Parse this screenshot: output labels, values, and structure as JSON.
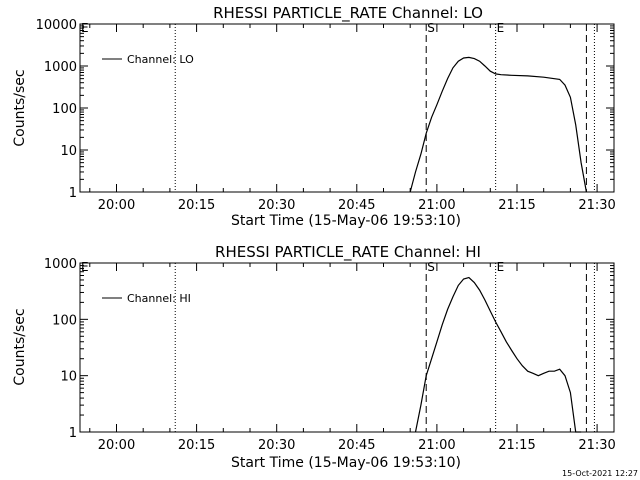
{
  "timestamp": "15-Oct-2021 12:27",
  "chart_data": [
    {
      "type": "line",
      "title": "RHESSI PARTICLE_RATE Channel: LO",
      "xlabel": "Start Time (15-May-06 19:53:10)",
      "ylabel": "Counts/sec",
      "y_scale": "log",
      "ylim": [
        1,
        10000
      ],
      "xlim": [
        "19:53:10",
        "21:33:10"
      ],
      "x_ticks": [
        "20:00",
        "20:15",
        "20:30",
        "20:45",
        "21:00",
        "21:15",
        "21:30"
      ],
      "y_ticks": [
        "1",
        "10",
        "100",
        "1000",
        "10000"
      ],
      "legend": {
        "placement": "top-left",
        "entries": [
          "Channel: LO"
        ]
      },
      "markers": [
        {
          "label": "E",
          "time": "19:53:10",
          "style": "none"
        },
        {
          "label": "",
          "time": "20:11:00",
          "style": "dotted"
        },
        {
          "label": "S",
          "time": "20:58:00",
          "style": "dashed"
        },
        {
          "label": "E",
          "time": "21:11:00",
          "style": "dotted"
        },
        {
          "label": "",
          "time": "21:28:00",
          "style": "dashed"
        },
        {
          "label": "",
          "time": "21:29:30",
          "style": "dotted"
        }
      ],
      "series": [
        {
          "name": "Channel: LO",
          "x": [
            "20:55:00",
            "20:56:00",
            "20:57:00",
            "20:58:00",
            "20:59:00",
            "21:00:00",
            "21:01:00",
            "21:02:00",
            "21:03:00",
            "21:04:00",
            "21:05:00",
            "21:06:00",
            "21:07:00",
            "21:08:00",
            "21:09:00",
            "21:10:00",
            "21:11:00",
            "21:12:00",
            "21:14:00",
            "21:17:00",
            "21:20:00",
            "21:23:00",
            "21:24:00",
            "21:25:00",
            "21:26:00",
            "21:27:00",
            "21:28:00"
          ],
          "values": [
            1,
            3,
            8,
            25,
            60,
            120,
            250,
            500,
            900,
            1300,
            1550,
            1600,
            1500,
            1300,
            1000,
            750,
            650,
            620,
            600,
            580,
            540,
            480,
            350,
            180,
            40,
            5,
            1
          ]
        }
      ]
    },
    {
      "type": "line",
      "title": "RHESSI PARTICLE_RATE Channel: HI",
      "xlabel": "Start Time (15-May-06 19:53:10)",
      "ylabel": "Counts/sec",
      "y_scale": "log",
      "ylim": [
        1,
        1000
      ],
      "xlim": [
        "19:53:10",
        "21:33:10"
      ],
      "x_ticks": [
        "20:00",
        "20:15",
        "20:30",
        "20:45",
        "21:00",
        "21:15",
        "21:30"
      ],
      "y_ticks": [
        "1",
        "10",
        "100",
        "1000"
      ],
      "legend": {
        "placement": "top-left",
        "entries": [
          "Channel: HI"
        ]
      },
      "markers": [
        {
          "label": "E",
          "time": "19:53:10",
          "style": "none"
        },
        {
          "label": "",
          "time": "20:11:00",
          "style": "dotted"
        },
        {
          "label": "S",
          "time": "20:58:00",
          "style": "dashed"
        },
        {
          "label": "E",
          "time": "21:11:00",
          "style": "dotted"
        },
        {
          "label": "",
          "time": "21:28:00",
          "style": "dashed"
        },
        {
          "label": "",
          "time": "21:29:30",
          "style": "dotted"
        }
      ],
      "series": [
        {
          "name": "Channel: HI",
          "x": [
            "20:56:00",
            "20:57:00",
            "20:58:00",
            "20:59:00",
            "21:00:00",
            "21:01:00",
            "21:02:00",
            "21:03:00",
            "21:04:00",
            "21:05:00",
            "21:06:00",
            "21:07:00",
            "21:08:00",
            "21:09:00",
            "21:10:00",
            "21:11:00",
            "21:12:00",
            "21:13:00",
            "21:14:00",
            "21:15:00",
            "21:16:00",
            "21:17:00",
            "21:18:00",
            "21:19:00",
            "21:20:00",
            "21:21:00",
            "21:22:00",
            "21:23:00",
            "21:24:00",
            "21:25:00",
            "21:26:00",
            "21:27:00"
          ],
          "values": [
            1,
            3,
            10,
            20,
            40,
            80,
            150,
            250,
            400,
            520,
            550,
            450,
            330,
            220,
            140,
            90,
            60,
            40,
            28,
            20,
            15,
            12,
            11,
            10,
            11,
            12,
            12,
            13,
            10,
            5,
            1,
            1
          ]
        }
      ]
    }
  ]
}
